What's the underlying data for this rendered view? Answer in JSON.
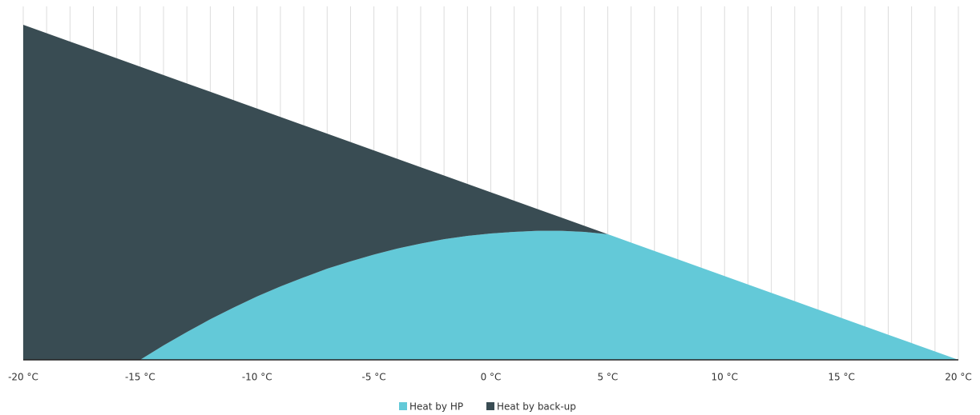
{
  "chart_data": {
    "type": "stacked-area",
    "x": [
      -20,
      -19,
      -18,
      -17,
      -16,
      -15,
      -14,
      -13,
      -12,
      -11,
      -10,
      -9,
      -8,
      -7,
      -6,
      -5,
      -4,
      -3,
      -2,
      -1,
      0,
      1,
      2,
      3,
      4,
      5,
      6,
      7,
      8,
      9,
      10,
      11,
      12,
      13,
      14,
      15,
      16,
      17,
      18,
      19,
      20
    ],
    "series": [
      {
        "name": "Heat by HP",
        "color": "#63c9d8",
        "values": [
          0,
          0,
          0,
          0,
          0,
          0,
          4.3,
          8.3,
          12.1,
          15.6,
          18.9,
          21.9,
          24.6,
          27.2,
          29.4,
          31.4,
          33.2,
          34.7,
          36.0,
          37.0,
          37.7,
          38.2,
          38.5,
          38.5,
          38.2,
          37.5,
          35,
          32.5,
          30,
          27.5,
          25,
          22.5,
          20,
          17.5,
          15,
          12.5,
          10,
          7.5,
          5,
          2.5,
          0
        ]
      },
      {
        "name": "Heat by back-up",
        "color": "#394c53",
        "values": [
          100,
          97.5,
          95,
          92.5,
          90,
          87.5,
          80.7,
          74.2,
          67.9,
          61.9,
          56.1,
          50.6,
          45.4,
          40.3,
          35.6,
          31.1,
          26.8,
          22.8,
          19.0,
          15.5,
          12.3,
          9.3,
          6.5,
          4.0,
          1.8,
          0,
          0,
          0,
          0,
          0,
          0,
          0,
          0,
          0,
          0,
          0,
          0,
          0,
          0,
          0,
          0
        ]
      }
    ],
    "xlim": [
      -20,
      20
    ],
    "ylim": [
      0,
      100
    ],
    "xticks": [
      {
        "value": -20,
        "label": "-20 °C"
      },
      {
        "value": -15,
        "label": "-15 °C"
      },
      {
        "value": -10,
        "label": "-10 °C"
      },
      {
        "value": -5,
        "label": "-5 °C"
      },
      {
        "value": 0,
        "label": "0 °C"
      },
      {
        "value": 5,
        "label": "5 °C"
      },
      {
        "value": 10,
        "label": "10 °C"
      },
      {
        "value": 15,
        "label": "15 °C"
      },
      {
        "value": 20,
        "label": "20 °C"
      }
    ],
    "grid": "x"
  }
}
